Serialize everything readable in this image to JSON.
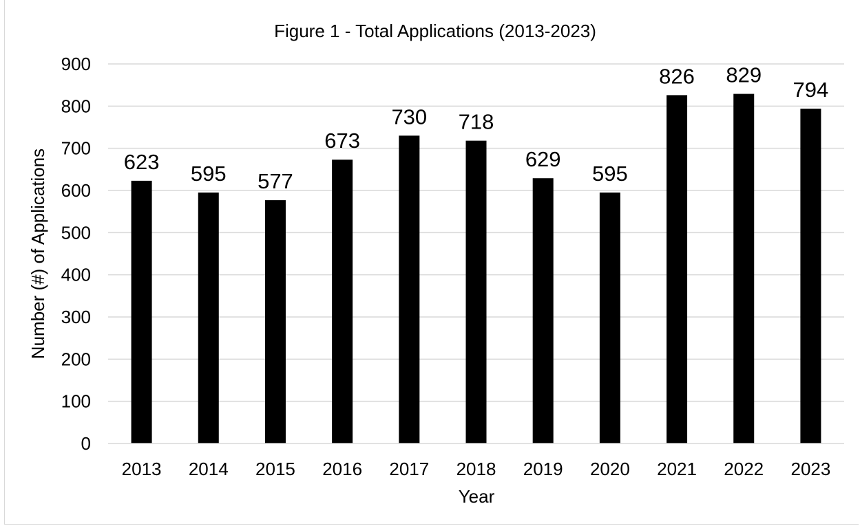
{
  "chart_data": {
    "type": "bar",
    "title": "Figure 1 - Total Applications (2013-2023)",
    "xlabel": "Year",
    "ylabel": "Number (#) of Applications",
    "categories": [
      "2013",
      "2014",
      "2015",
      "2016",
      "2017",
      "2018",
      "2019",
      "2020",
      "2021",
      "2022",
      "2023"
    ],
    "values": [
      623,
      595,
      577,
      673,
      730,
      718,
      629,
      595,
      826,
      829,
      794
    ],
    "ylim": [
      0,
      900
    ],
    "yticks": [
      0,
      100,
      200,
      300,
      400,
      500,
      600,
      700,
      800,
      900
    ],
    "grid": true,
    "legend": "none",
    "data_labels": true,
    "colors": {
      "bar": "#000000",
      "grid": "#d9d9d9",
      "axis": "#d9d9d9",
      "text": "#000000"
    }
  }
}
